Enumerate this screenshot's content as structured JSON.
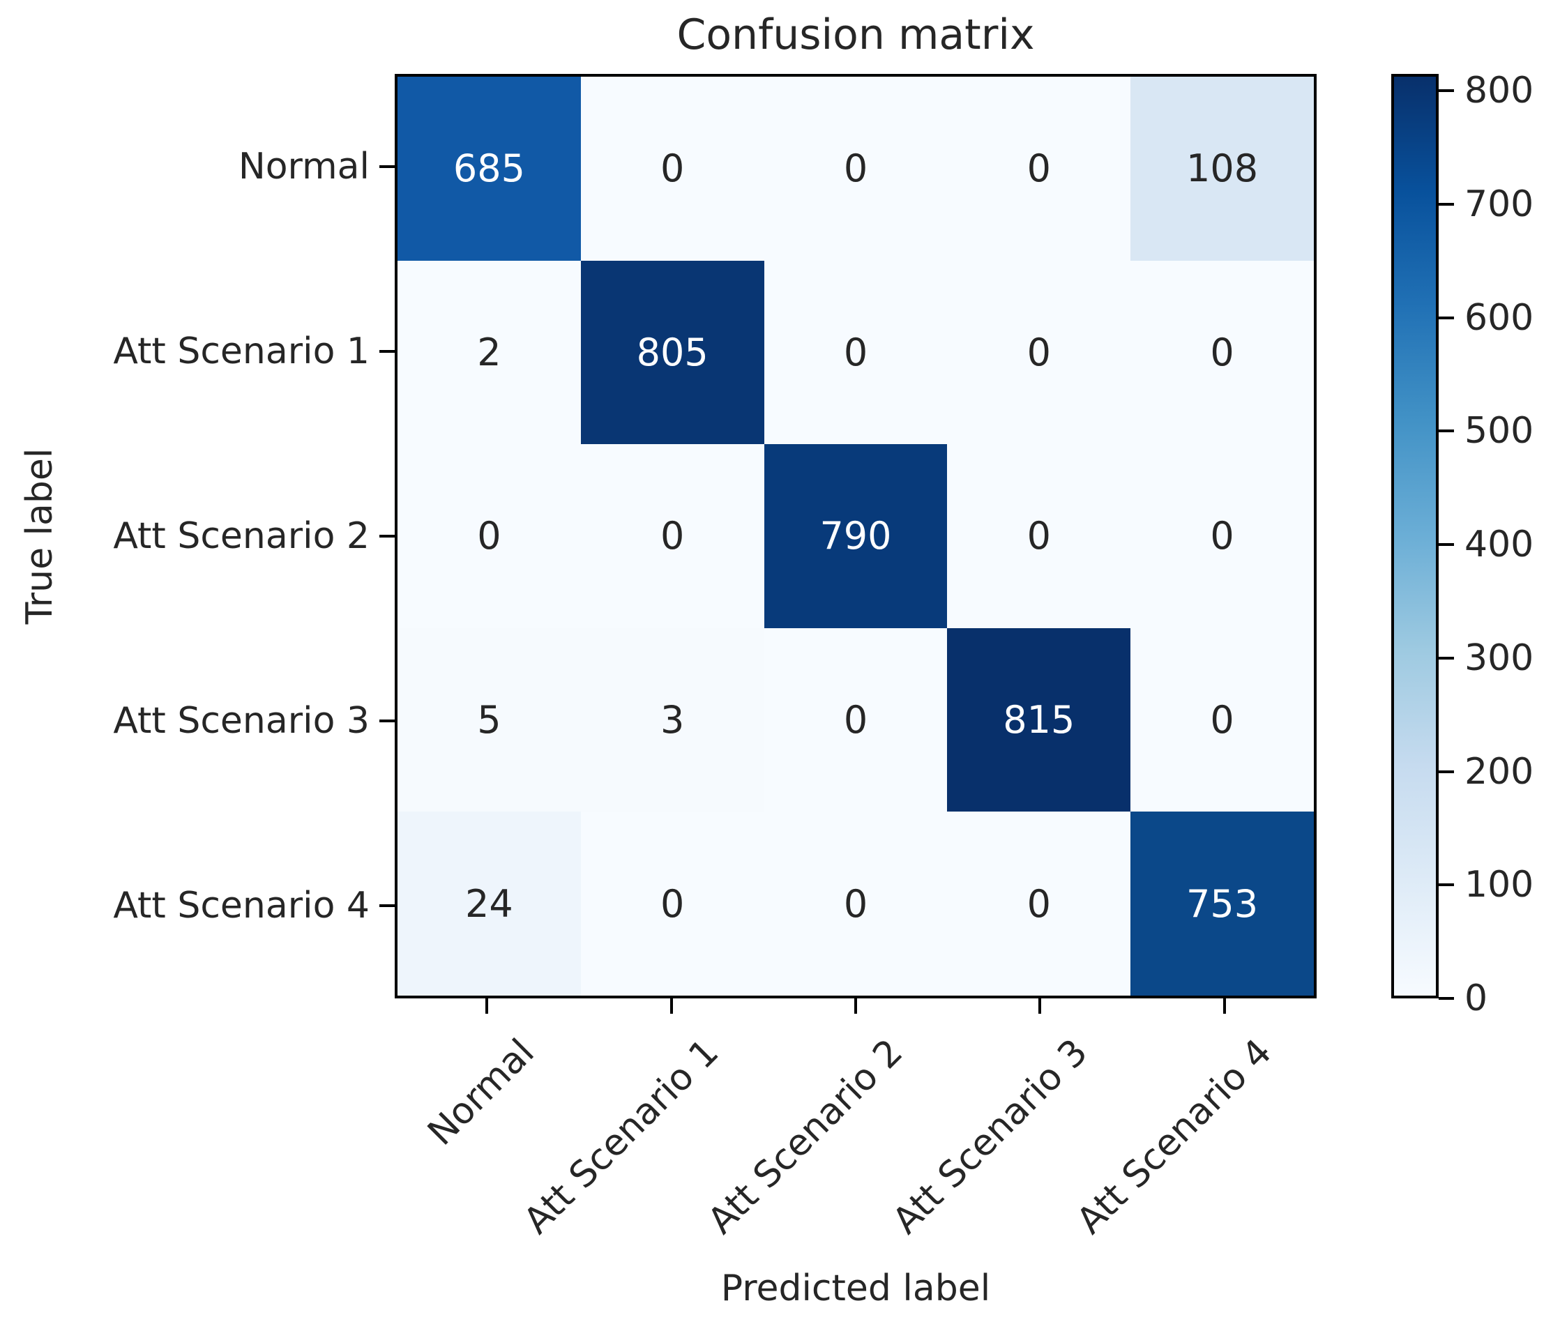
{
  "title": "Confusion matrix",
  "chart_data": {
    "type": "heatmap",
    "title": "Confusion matrix",
    "xlabel": "Predicted label",
    "ylabel": "True label",
    "x_categories": [
      "Normal",
      "Att Scenario 1",
      "Att Scenario 2",
      "Att Scenario 3",
      "Att Scenario 4"
    ],
    "y_categories": [
      "Normal",
      "Att Scenario 1",
      "Att Scenario 2",
      "Att Scenario 3",
      "Att Scenario 4"
    ],
    "matrix": [
      [
        685,
        0,
        0,
        0,
        108
      ],
      [
        2,
        805,
        0,
        0,
        0
      ],
      [
        0,
        0,
        790,
        0,
        0
      ],
      [
        5,
        3,
        0,
        815,
        0
      ],
      [
        24,
        0,
        0,
        0,
        753
      ]
    ],
    "vmin": 0,
    "vmax": 815,
    "colormap": "Blues",
    "colorbar_ticks": [
      0,
      100,
      200,
      300,
      400,
      500,
      600,
      700,
      800
    ],
    "cell_colors": [
      [
        "#1159a6",
        "#f7fbff",
        "#f7fbff",
        "#f7fbff",
        "#d9e7f4"
      ],
      [
        "#f7fbff",
        "#093673",
        "#f7fbff",
        "#f7fbff",
        "#f7fbff"
      ],
      [
        "#f7fbff",
        "#f7fbff",
        "#083a7a",
        "#f7fbff",
        "#f7fbff"
      ],
      [
        "#f6fafe",
        "#f6fafe",
        "#f7fbff",
        "#08306b",
        "#f7fbff"
      ],
      [
        "#eef5fc",
        "#f7fbff",
        "#f7fbff",
        "#f7fbff",
        "#0b4889"
      ]
    ],
    "text_threshold": 407.5,
    "legend_position": "right-colorbar",
    "grid": false
  },
  "colors": {
    "background": "#ffffff",
    "text": "#262626",
    "spine": "#000000",
    "cell_text_light": "#ffffff",
    "cell_text_dark": "#262626",
    "colorbar_gradient": [
      "#f7fbff",
      "#deebf7",
      "#c6dbef",
      "#9ecae1",
      "#6baed6",
      "#4292c6",
      "#2171b5",
      "#08519c",
      "#08306b"
    ]
  }
}
